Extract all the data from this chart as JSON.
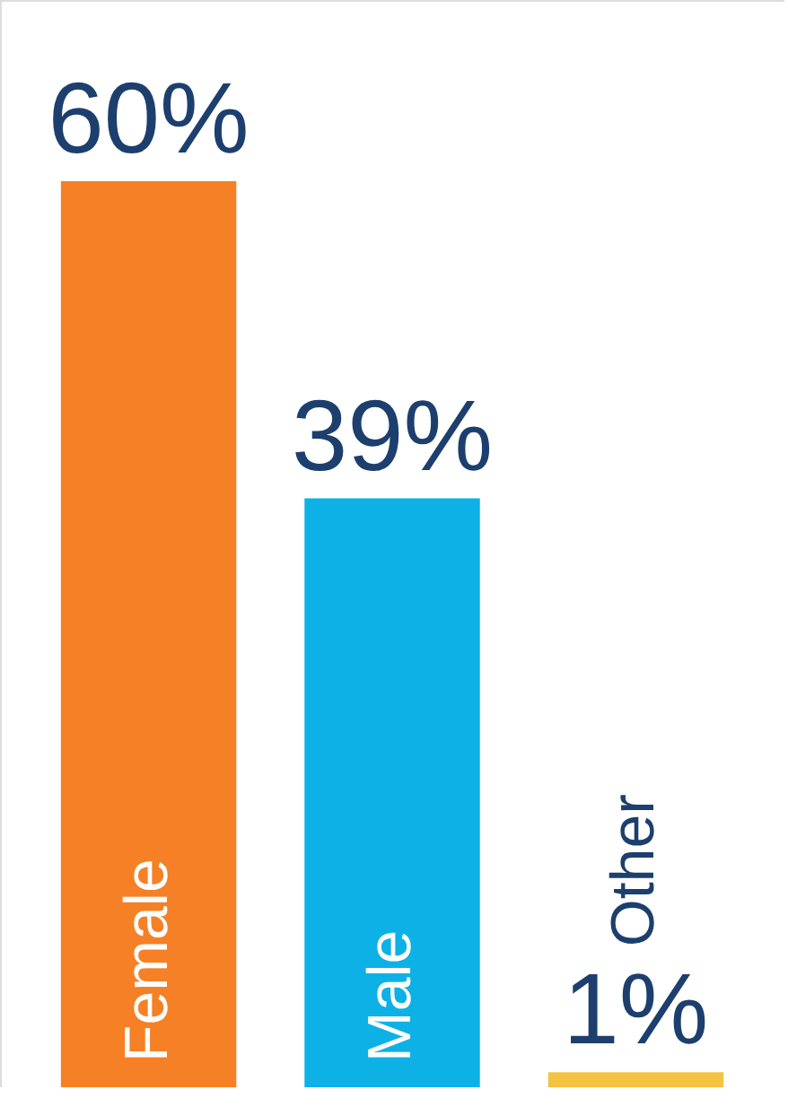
{
  "chart_data": {
    "type": "bar",
    "categories": [
      "Female",
      "Male",
      "Other"
    ],
    "values": [
      60,
      39,
      1
    ],
    "colors": [
      "#f58025",
      "#0db1e6",
      "#f5c342"
    ],
    "value_labels": [
      "60%",
      "39%",
      "1%"
    ],
    "tick_labels": false
  }
}
